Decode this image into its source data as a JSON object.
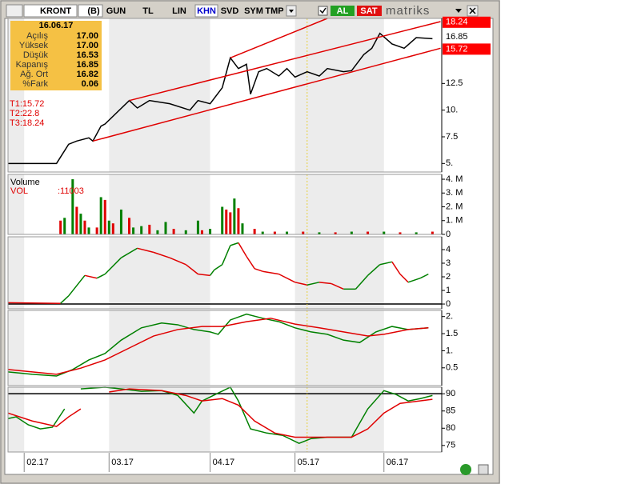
{
  "toolbar": {
    "symbol": "KRONT",
    "buttons": [
      "(B)",
      "GUN",
      "TL",
      "LIN",
      "KHN",
      "SVD",
      "SYM",
      "TMP"
    ],
    "buy": "AL",
    "sell": "SAT",
    "logo": "matriks"
  },
  "info_box": {
    "date": "16.06.17",
    "rows": [
      {
        "label": "Açılış",
        "value": "17.00"
      },
      {
        "label": "Yüksek",
        "value": "17.00"
      },
      {
        "label": "Düşük",
        "value": "16.53"
      },
      {
        "label": "Kapanış",
        "value": "16.85"
      },
      {
        "label": "Ağ. Ort",
        "value": "16.82"
      },
      {
        "label": "%Fark",
        "value": "0.06"
      }
    ]
  },
  "targets": [
    "T1:15.72",
    "T2:22.8",
    "T3:18.24"
  ],
  "cursor_x": 74,
  "chart_data": [
    {
      "type": "line",
      "xlim": [
        0,
        107.3
      ],
      "xticks": [
        {
          "value": 4,
          "label": "02.17"
        },
        {
          "value": 25,
          "label": "03.17"
        },
        {
          "value": 50,
          "label": "04.17"
        },
        {
          "value": 71,
          "label": "05.17"
        },
        {
          "value": 93,
          "label": "06.17"
        }
      ],
      "ylim": [
        4.2,
        18.6
      ],
      "yticks": [
        {
          "value": 5,
          "label": "5."
        },
        7.5,
        {
          "value": 10,
          "label": "10."
        },
        12.5
      ],
      "series": [
        {
          "color": "#000000",
          "x": [
            0,
            12,
            15,
            17,
            20,
            21,
            23,
            24,
            30,
            32,
            35,
            40,
            45,
            47,
            50,
            53,
            55,
            57,
            59,
            60,
            62,
            64,
            67,
            69,
            71,
            74,
            77,
            79,
            83,
            85,
            88,
            90,
            92,
            95,
            98,
            101,
            105
          ],
          "values": [
            5.0,
            5.0,
            6.8,
            7.1,
            7.4,
            7.1,
            8.5,
            8.7,
            10.9,
            10.2,
            10.9,
            10.6,
            10.0,
            10.9,
            10.6,
            12.1,
            14.9,
            13.9,
            14.3,
            11.5,
            13.6,
            13.9,
            13.2,
            13.9,
            13.1,
            13.6,
            13.2,
            13.9,
            13.6,
            13.7,
            15.2,
            15.8,
            17.2,
            16.2,
            15.8,
            16.8,
            16.7
          ]
        }
      ],
      "trendlines": [
        {
          "color": "#e00000",
          "x": [
            21,
            107
          ],
          "values": [
            7.1,
            15.8
          ]
        },
        {
          "color": "#e00000",
          "x": [
            30,
            107
          ],
          "values": [
            10.9,
            18.3
          ]
        },
        {
          "color": "#e00000",
          "x": [
            55,
            79
          ],
          "values": [
            14.9,
            18.6
          ]
        }
      ],
      "price_tags": [
        {
          "value": 18.24,
          "color": "#ff0000"
        },
        {
          "value": 16.85,
          "color": "#ffffff"
        },
        {
          "value": 15.72,
          "color": "#ff0000"
        }
      ]
    },
    {
      "type": "bar",
      "title": "Volume",
      "legend_label": "VOL",
      "last_value": ":11003",
      "xlim": [
        0,
        107.3
      ],
      "ylim": [
        0,
        4.35
      ],
      "yticks": [
        0,
        {
          "value": 1,
          "label": "1. M"
        },
        {
          "value": 2,
          "label": "2. M"
        },
        {
          "value": 3,
          "label": "3. M"
        },
        {
          "value": 4,
          "label": "4. M"
        }
      ],
      "series": [
        {
          "color": "#008000",
          "x": [
            14,
            16,
            18,
            20,
            23,
            25,
            28,
            31,
            33,
            37,
            39,
            44,
            47,
            50,
            53,
            56,
            58,
            63,
            69,
            77,
            85,
            93,
            101
          ],
          "values": [
            1.2,
            4.0,
            1.5,
            0.5,
            2.7,
            1.0,
            1.8,
            0.5,
            0.6,
            0.3,
            0.9,
            0.3,
            1.0,
            0.4,
            2.0,
            2.6,
            0.8,
            0.2,
            0.2,
            0.15,
            0.2,
            0.2,
            0.15
          ]
        },
        {
          "color": "#e00000",
          "x": [
            13,
            17,
            19,
            22,
            24,
            26,
            30,
            35,
            41,
            48,
            54,
            55,
            57,
            61,
            66,
            73,
            81,
            89,
            97,
            105
          ],
          "values": [
            1.0,
            2.0,
            1.0,
            0.5,
            2.5,
            0.8,
            1.2,
            0.7,
            0.4,
            0.3,
            1.8,
            1.6,
            1.9,
            0.4,
            0.2,
            0.2,
            0.15,
            0.2,
            0.15,
            0.2
          ]
        }
      ]
    },
    {
      "type": "direction_line",
      "xlim": [
        0,
        107.3
      ],
      "ylim": [
        -0.35,
        4.94
      ],
      "yticks": [
        0,
        1,
        2,
        3,
        4
      ],
      "hline": 0,
      "up_color": "#008000",
      "down_color": "#e00000",
      "series": [
        {
          "x": [
            0,
            13,
            15,
            19,
            22,
            24,
            28,
            32,
            36,
            40,
            44,
            47,
            50,
            51,
            53,
            55,
            57,
            59,
            61,
            63,
            67,
            71,
            74,
            77,
            80,
            83,
            86,
            89,
            92,
            95,
            97,
            99,
            102,
            104
          ],
          "values": [
            0.1,
            0.05,
            0.6,
            2.1,
            1.9,
            2.2,
            3.4,
            4.1,
            3.8,
            3.4,
            2.9,
            2.2,
            2.1,
            2.5,
            2.9,
            4.3,
            4.5,
            3.5,
            2.6,
            2.4,
            2.2,
            1.6,
            1.4,
            1.6,
            1.5,
            1.1,
            1.1,
            2.1,
            2.9,
            3.1,
            2.2,
            1.6,
            1.9,
            2.2
          ]
        }
      ]
    },
    {
      "type": "line",
      "xlim": [
        0,
        107.3
      ],
      "ylim": [
        -0.02,
        2.18
      ],
      "yticks": [
        0.5,
        {
          "value": 1,
          "label": "1."
        },
        1.5,
        {
          "value": 2,
          "label": "2."
        }
      ],
      "series": [
        {
          "color": "#008000",
          "x": [
            0,
            6,
            12,
            16,
            20,
            24,
            28,
            33,
            38,
            42,
            46,
            50,
            52,
            55,
            59,
            63,
            67,
            71,
            75,
            79,
            83,
            87,
            91,
            95,
            99,
            104
          ],
          "values": [
            0.38,
            0.31,
            0.26,
            0.45,
            0.73,
            0.92,
            1.31,
            1.67,
            1.81,
            1.76,
            1.62,
            1.55,
            1.48,
            1.9,
            2.07,
            1.95,
            1.85,
            1.67,
            1.55,
            1.48,
            1.31,
            1.24,
            1.55,
            1.71,
            1.62,
            1.67
          ]
        },
        {
          "color": "#e00000",
          "x": [
            0,
            6,
            12,
            18,
            24,
            30,
            36,
            42,
            48,
            53,
            59,
            65,
            71,
            77,
            83,
            89,
            93,
            99,
            104
          ],
          "values": [
            0.45,
            0.38,
            0.31,
            0.49,
            0.73,
            1.08,
            1.43,
            1.62,
            1.71,
            1.71,
            1.85,
            1.95,
            1.78,
            1.67,
            1.55,
            1.43,
            1.48,
            1.62,
            1.67
          ]
        }
      ]
    },
    {
      "type": "line",
      "xlim": [
        0,
        107.3
      ],
      "ylim": [
        73.1,
        91.9
      ],
      "yticks": [
        75,
        80,
        85,
        90
      ],
      "hline": 90,
      "series": [
        {
          "color": "#008000",
          "x": [
            0,
            2,
            5,
            8,
            11,
            14,
            16,
            18,
            24,
            28,
            33,
            38,
            42,
            46,
            48,
            52,
            55,
            57,
            60,
            64,
            68,
            72,
            75,
            79,
            85,
            89,
            93,
            96,
            99,
            102,
            105
          ],
          "values": [
            82.8,
            83.3,
            81,
            79.8,
            80.3,
            85.6,
            null,
            91.4,
            91.9,
            91.4,
            90.7,
            90.9,
            89.5,
            84.4,
            87.9,
            90.2,
            91.9,
            87.9,
            79.8,
            78.6,
            77.9,
            75.6,
            77,
            77.4,
            77.4,
            85.6,
            90.9,
            89.8,
            87.9,
            88.6,
            89.5
          ]
        },
        {
          "color": "#e00000",
          "x": [
            0,
            6,
            12,
            15,
            18,
            20,
            25,
            30,
            38,
            44,
            48,
            53,
            57,
            61,
            66,
            71,
            76,
            85,
            89,
            93,
            97,
            105
          ],
          "values": [
            84.4,
            82.1,
            80.5,
            83.3,
            85.6,
            null,
            90.5,
            91.4,
            90.9,
            89.5,
            87.9,
            88.6,
            86.7,
            82.1,
            78.6,
            77.4,
            77.4,
            77.4,
            79.8,
            84.4,
            87.2,
            88.4
          ]
        }
      ]
    }
  ]
}
